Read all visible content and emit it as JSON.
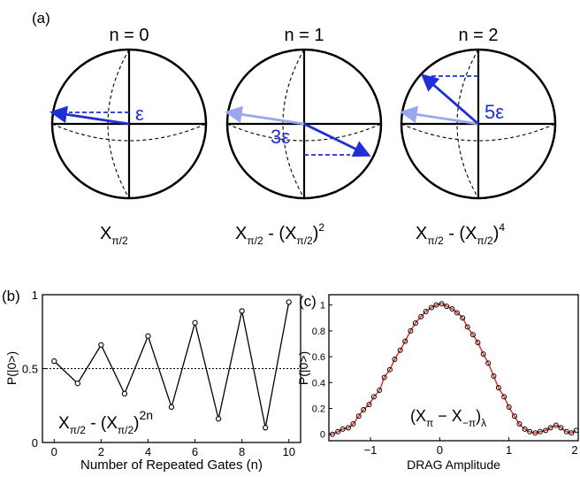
{
  "panel_a": {
    "label": "(a)",
    "spheres": [
      {
        "title": "n = 0",
        "arrow_label": "ε",
        "caption_main": "X",
        "caption_sub": "π/2",
        "caption_rest": "",
        "caption_rest_sub": "",
        "caption_sup": ""
      },
      {
        "title": "n = 1",
        "arrow_label": "3ε",
        "caption_main": "X",
        "caption_sub": "π/2",
        "caption_rest": " - (X",
        "caption_rest_sub": "π/2",
        "caption_sup": "2"
      },
      {
        "title": "n = 2",
        "arrow_label": "5ε",
        "caption_main": "X",
        "caption_sub": "π/2",
        "caption_rest": " - (X",
        "caption_rest_sub": "π/2",
        "caption_sup": "4"
      }
    ],
    "colors": {
      "arrow": "#1f2fd6",
      "arrow_faded": "#9aa6ee"
    }
  },
  "chart_data": [
    {
      "type": "line",
      "panel_label": "(b)",
      "xlabel": "Number of Repeated Gates (n)",
      "ylabel": "P(|0>)",
      "xlim": [
        -0.5,
        10.5
      ],
      "ylim": [
        0,
        1
      ],
      "xticks": [
        "0",
        "2",
        "4",
        "6",
        "8",
        "10"
      ],
      "xtick_values": [
        0,
        2,
        4,
        6,
        8,
        10
      ],
      "yticks": [
        "0",
        "0.5",
        "1"
      ],
      "ytick_values": [
        0,
        0.5,
        1
      ],
      "reference_line": 0.5,
      "series": [
        {
          "x": [
            0,
            1,
            2,
            3,
            4,
            5,
            6,
            7,
            8,
            9,
            10
          ],
          "y": [
            0.55,
            0.4,
            0.66,
            0.33,
            0.72,
            0.24,
            0.81,
            0.16,
            0.89,
            0.1,
            0.95
          ]
        }
      ],
      "annotation": {
        "main": "X",
        "sub1": "π/2",
        "mid": " - (X",
        "sub2": "π/2",
        "close": ")",
        "sup": "2n"
      }
    },
    {
      "type": "scatter",
      "panel_label": "(c)",
      "xlabel": "DRAG Amplitude",
      "ylabel": "P(|0>)",
      "xlim": [
        -1.6,
        2.0
      ],
      "ylim": [
        -0.05,
        1.08
      ],
      "xticks": [
        "−1",
        "0",
        "1",
        "2"
      ],
      "xtick_values": [
        -1,
        0,
        1,
        2
      ],
      "yticks": [
        "0",
        "0.2",
        "0.4",
        "0.6",
        "0.8",
        "1"
      ],
      "ytick_values": [
        0,
        0.2,
        0.4,
        0.6,
        0.8,
        1
      ],
      "points_x": [
        -1.55,
        -1.47,
        -1.4,
        -1.32,
        -1.25,
        -1.17,
        -1.1,
        -1.02,
        -0.95,
        -0.87,
        -0.8,
        -0.72,
        -0.65,
        -0.57,
        -0.5,
        -0.42,
        -0.35,
        -0.27,
        -0.2,
        -0.12,
        -0.05,
        0.03,
        0.1,
        0.18,
        0.25,
        0.33,
        0.4,
        0.48,
        0.55,
        0.63,
        0.7,
        0.78,
        0.85,
        0.93,
        1.0,
        1.08,
        1.15,
        1.23,
        1.3,
        1.38,
        1.45,
        1.53,
        1.6,
        1.68,
        1.75,
        1.83,
        1.9,
        1.97
      ],
      "points_y": [
        0.0,
        0.02,
        0.04,
        0.05,
        0.08,
        0.14,
        0.19,
        0.23,
        0.29,
        0.34,
        0.44,
        0.5,
        0.58,
        0.65,
        0.72,
        0.8,
        0.86,
        0.91,
        0.95,
        0.98,
        1.0,
        1.01,
        0.99,
        0.97,
        0.94,
        0.9,
        0.83,
        0.77,
        0.71,
        0.62,
        0.55,
        0.45,
        0.36,
        0.29,
        0.21,
        0.14,
        0.08,
        0.04,
        0.02,
        0.01,
        0.02,
        0.03,
        0.05,
        0.07,
        0.05,
        0.02,
        0.01,
        0.03
      ],
      "fit_color": "#e8211b",
      "annotation": {
        "open": "(X",
        "sub1": "π",
        "mid": " − X",
        "sub2": "−π",
        "close": ")",
        "sub3": "λ"
      }
    }
  ]
}
